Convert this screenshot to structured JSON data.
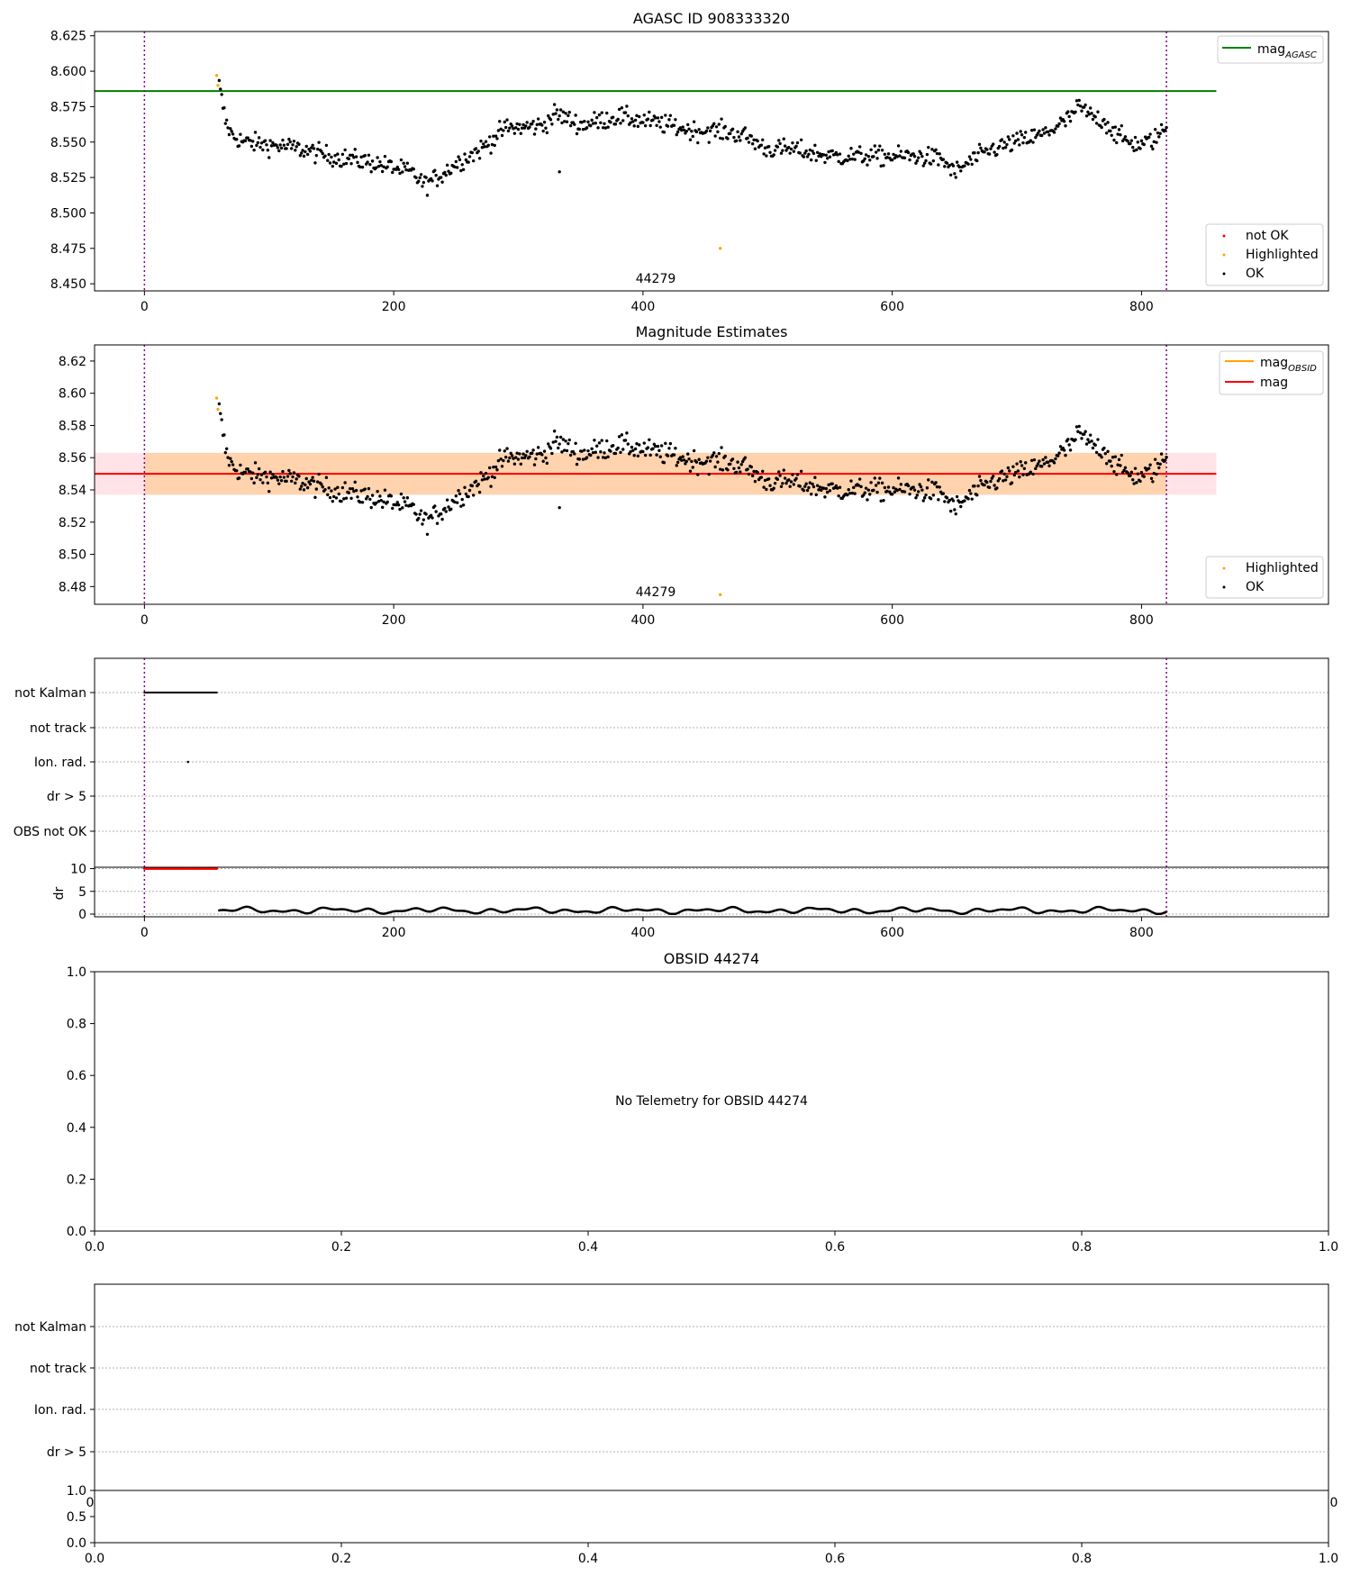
{
  "panel1": {
    "title": "AGASC ID 908333320",
    "obsid_annotation": "44279",
    "reference_mag": 8.586,
    "xlim": [
      -40,
      950
    ],
    "ylim": [
      8.445,
      8.628
    ],
    "xticks": [
      0,
      200,
      400,
      600,
      800
    ],
    "yticks": [
      8.45,
      8.475,
      8.5,
      8.525,
      8.55,
      8.575,
      8.6,
      8.625
    ],
    "ytick_labels": [
      "8.450",
      "8.475",
      "8.500",
      "8.525",
      "8.550",
      "8.575",
      "8.600",
      "8.625"
    ],
    "legend_top": [
      {
        "label": "mag",
        "sub": "AGASC",
        "color": "#008000"
      }
    ],
    "legend_bottom": [
      {
        "label": "not OK",
        "color": "#ff0000"
      },
      {
        "label": "Highlighted",
        "color": "#ffa500"
      },
      {
        "label": "OK",
        "color": "#000000"
      }
    ]
  },
  "panel2": {
    "title": "Magnitude Estimates",
    "obsid_annotation": "44279",
    "mean_mag": 8.55,
    "band_inner": [
      8.537,
      8.563
    ],
    "band_outer": [
      8.537,
      8.563
    ],
    "xlim": [
      -40,
      950
    ],
    "ylim": [
      8.469,
      8.63
    ],
    "xticks": [
      0,
      200,
      400,
      600,
      800
    ],
    "yticks": [
      8.48,
      8.5,
      8.52,
      8.54,
      8.56,
      8.58,
      8.6,
      8.62
    ],
    "ytick_labels": [
      "8.48",
      "8.50",
      "8.52",
      "8.54",
      "8.56",
      "8.58",
      "8.60",
      "8.62"
    ],
    "legend_top": [
      {
        "label": "mag",
        "sub": "OBSID",
        "color": "#ffa500"
      },
      {
        "label": "mag",
        "sub": "",
        "color": "#ff0000"
      }
    ],
    "legend_bottom": [
      {
        "label": "Highlighted",
        "color": "#ffa500"
      },
      {
        "label": "OK",
        "color": "#000000"
      }
    ]
  },
  "panel3": {
    "flag_labels": [
      "not Kalman",
      "not track",
      "Ion. rad.",
      "dr > 5",
      "OBS not OK"
    ],
    "dr_label": "dr",
    "dr_yticks": [
      "0",
      "5",
      "10"
    ],
    "xticks": [
      0,
      200,
      400,
      600,
      800
    ]
  },
  "panel4": {
    "title": "OBSID 44274",
    "message": "No Telemetry for OBSID 44274",
    "yticks": [
      "0.0",
      "0.2",
      "0.4",
      "0.6",
      "0.8",
      "1.0"
    ],
    "xticks": [
      "0.0",
      "0.2",
      "0.4",
      "0.6",
      "0.8",
      "1.0"
    ]
  },
  "panel5": {
    "flag_labels": [
      "not Kalman",
      "not track",
      "Ion. rad.",
      "dr > 5"
    ],
    "sub_yticks": [
      "0.0",
      "0.5",
      "1.0"
    ],
    "xticks": [
      "0.0",
      "0.2",
      "0.4",
      "0.6",
      "0.8",
      "1.0"
    ],
    "partial_tick_left": "0",
    "partial_tick_right": "0"
  },
  "colors": {
    "vline": "#800080",
    "ok": "#000000",
    "not_ok": "#ff0000",
    "highlighted": "#ffa500",
    "agasc_line": "#008000",
    "mean_line": "#ff0000",
    "band_outer": "#ffc0cb",
    "band_inner": "#ffa500",
    "grid": "#b0b0b0"
  },
  "chart_data": [
    {
      "type": "scatter",
      "title": "AGASC ID 908333320",
      "xlim": [
        -40,
        950
      ],
      "ylim": [
        8.445,
        8.628
      ],
      "vertical_lines_x": [
        0,
        820
      ],
      "reference_line": {
        "name": "mag_AGASC",
        "y": 8.586
      },
      "annotation": {
        "text": "44279",
        "x": 410,
        "y": 8.45
      },
      "series": [
        {
          "name": "Highlighted",
          "points": [
            [
              58,
              8.597
            ],
            [
              59,
              8.59
            ],
            [
              462,
              8.475
            ]
          ]
        },
        {
          "name": "OK",
          "trend_x": [
            60,
            62,
            65,
            70,
            80,
            100,
            120,
            150,
            180,
            200,
            215,
            225,
            235,
            250,
            270,
            290,
            300,
            320,
            330,
            350,
            380,
            400,
            420,
            440,
            460,
            480,
            500,
            520,
            550,
            580,
            600,
            620,
            640,
            650,
            660,
            680,
            700,
            720,
            740,
            750,
            760,
            770,
            780,
            790,
            800,
            810,
            820
          ],
          "trend_y": [
            8.59,
            8.58,
            8.565,
            8.555,
            8.55,
            8.548,
            8.546,
            8.54,
            8.536,
            8.532,
            8.528,
            8.52,
            8.525,
            8.535,
            8.545,
            8.56,
            8.56,
            8.562,
            8.57,
            8.562,
            8.568,
            8.565,
            8.562,
            8.558,
            8.558,
            8.555,
            8.545,
            8.545,
            8.54,
            8.54,
            8.54,
            8.54,
            8.538,
            8.528,
            8.535,
            8.545,
            8.55,
            8.555,
            8.565,
            8.575,
            8.568,
            8.565,
            8.555,
            8.55,
            8.548,
            8.552,
            8.56
          ]
        }
      ]
    },
    {
      "type": "scatter",
      "title": "Magnitude Estimates",
      "xlim": [
        -40,
        950
      ],
      "ylim": [
        8.469,
        8.63
      ],
      "mean_line": {
        "name": "mag",
        "y": 8.55
      },
      "band": [
        8.537,
        8.563
      ]
    },
    {
      "type": "scatter",
      "flags": {
        "not Kalman": [
          0,
          58
        ],
        "Ion. rad.": [
          35,
          35
        ]
      },
      "dr_series": {
        "ylim": [
          0,
          10
        ],
        "note": "dr near 10 for t<58 (red), then 0.2-1.5 oscillating to t=820"
      }
    }
  ]
}
